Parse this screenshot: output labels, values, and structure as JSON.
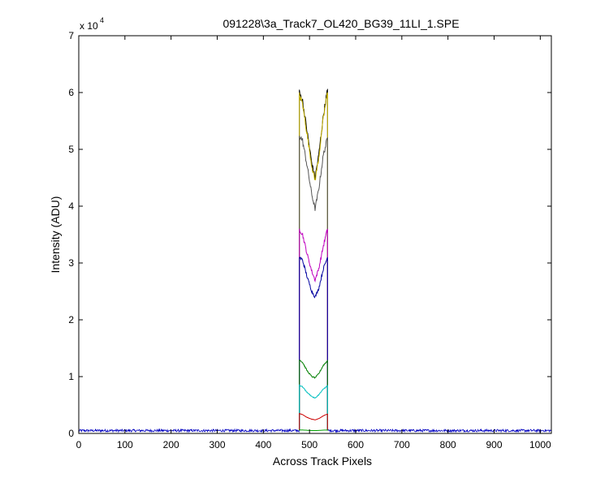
{
  "chart_data": {
    "type": "line",
    "title": "091228\\3a_Track7_OL420_BG39_11LI_1.SPE",
    "xlabel": "Across Track Pixels",
    "ylabel": "Intensity (ADU)",
    "y_multiplier_base": "x 10",
    "y_multiplier_exp": "4",
    "xlim": [
      0,
      1024
    ],
    "ylim": [
      0,
      70000
    ],
    "x_ticks": [
      "0",
      "100",
      "200",
      "300",
      "400",
      "500",
      "600",
      "700",
      "800",
      "900",
      "1000"
    ],
    "y_ticks": [
      "0",
      "1",
      "2",
      "3",
      "4",
      "5",
      "6",
      "7"
    ],
    "grid": false,
    "signal_range": [
      478,
      539
    ],
    "baseline_level": 500,
    "series": [
      {
        "color": "#000000",
        "x": [
          478,
          485,
          495,
          505,
          512,
          520,
          530,
          539
        ],
        "y": [
          60000,
          58500,
          53000,
          47500,
          45000,
          49000,
          56000,
          60500
        ]
      },
      {
        "color": "#c8b400",
        "x": [
          478,
          485,
          495,
          505,
          512,
          520,
          530,
          539
        ],
        "y": [
          59500,
          58000,
          52500,
          47000,
          44500,
          48500,
          55500,
          60000
        ]
      },
      {
        "color": "#555555",
        "x": [
          478,
          485,
          495,
          505,
          512,
          520,
          530,
          539
        ],
        "y": [
          52500,
          51500,
          47000,
          42000,
          39500,
          43000,
          49000,
          52000
        ]
      },
      {
        "color": "#bf00bf",
        "x": [
          478,
          485,
          495,
          505,
          512,
          520,
          530,
          539
        ],
        "y": [
          36000,
          35000,
          31500,
          28500,
          27000,
          29000,
          33000,
          36000
        ]
      },
      {
        "color": "#0000a0",
        "x": [
          478,
          485,
          495,
          505,
          512,
          520,
          530,
          539
        ],
        "y": [
          31000,
          30500,
          27500,
          25000,
          24000,
          25500,
          29000,
          31000
        ]
      },
      {
        "color": "#007f00",
        "x": [
          478,
          485,
          495,
          505,
          512,
          520,
          530,
          539
        ],
        "y": [
          13000,
          12500,
          11000,
          10000,
          9800,
          10500,
          12000,
          12800
        ]
      },
      {
        "color": "#00bfbf",
        "x": [
          478,
          485,
          495,
          505,
          512,
          520,
          530,
          539
        ],
        "y": [
          8500,
          8200,
          7200,
          6500,
          6200,
          6800,
          7800,
          8400
        ]
      },
      {
        "color": "#cc0000",
        "x": [
          478,
          485,
          495,
          505,
          512,
          520,
          530,
          539
        ],
        "y": [
          3500,
          3300,
          2800,
          2500,
          2400,
          2600,
          3100,
          3400
        ]
      },
      {
        "color": "#00a000",
        "x": [
          478,
          485,
          495,
          505,
          512,
          520,
          530,
          539
        ],
        "y": [
          600,
          600,
          550,
          500,
          500,
          520,
          580,
          600
        ]
      }
    ]
  }
}
